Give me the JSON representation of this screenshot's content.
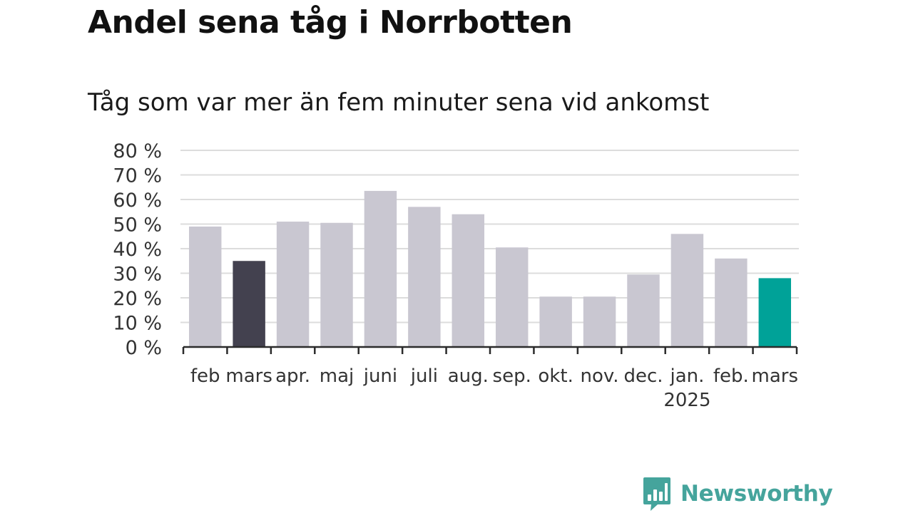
{
  "header": {
    "title": "Andel sena tåg i Norrbotten",
    "subtitle": "Tåg som var mer än fem minuter sena vid ankomst"
  },
  "brand": {
    "name": "Newsworthy",
    "color": "#45a49c",
    "icon": "bar-chart-speech-bubble-icon"
  },
  "colors": {
    "bar_default": "#c9c7d1",
    "bar_highlight_previous": "#43414f",
    "bar_highlight_current": "#00a298",
    "grid": "#dcdcdc",
    "axis": "#2b2b2b"
  },
  "chart_data": {
    "type": "bar",
    "categories": [
      "feb",
      "mars",
      "apr.",
      "maj",
      "juni",
      "juli",
      "aug.",
      "sep.",
      "okt.",
      "nov.",
      "dec.",
      "jan.",
      "feb.",
      "mars"
    ],
    "year_labels": [
      {
        "index": 11,
        "label": "2025"
      }
    ],
    "values": [
      49,
      35,
      51,
      50.5,
      63.5,
      57,
      54,
      40.5,
      20.5,
      20.5,
      29.5,
      46,
      36,
      28
    ],
    "bar_colors": [
      "default",
      "previous",
      "default",
      "default",
      "default",
      "default",
      "default",
      "default",
      "default",
      "default",
      "default",
      "default",
      "default",
      "current"
    ],
    "ylim": [
      0,
      80
    ],
    "yticks": [
      0,
      10,
      20,
      30,
      40,
      50,
      60,
      70,
      80
    ],
    "ytick_labels": [
      "0 %",
      "10 %",
      "20 %",
      "30 %",
      "40 %",
      "50 %",
      "60 %",
      "70 %",
      "80 %"
    ],
    "grid": true,
    "xlabel": "",
    "ylabel": ""
  }
}
